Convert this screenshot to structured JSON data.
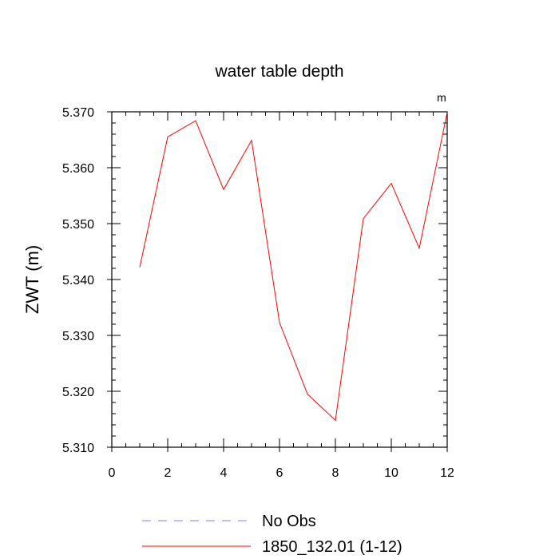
{
  "chart_data": {
    "type": "line",
    "title": "water table depth",
    "units_label": "m",
    "xlabel": "",
    "ylabel": "ZWT  (m)",
    "xlim": [
      0,
      12
    ],
    "ylim": [
      5.31,
      5.37
    ],
    "x_ticks": [
      0,
      2,
      4,
      6,
      8,
      10,
      12
    ],
    "x_tick_labels": [
      "0",
      "2",
      "4",
      "6",
      "8",
      "10",
      "12"
    ],
    "y_ticks": [
      5.31,
      5.32,
      5.33,
      5.34,
      5.35,
      5.36,
      5.37
    ],
    "y_tick_labels": [
      "5.310",
      "5.320",
      "5.330",
      "5.340",
      "5.350",
      "5.360",
      "5.370"
    ],
    "grid": false,
    "legend_position": "bottom",
    "series": [
      {
        "name": "No Obs",
        "color": "#7f7fff",
        "dash": "dashed",
        "x": [],
        "values": []
      },
      {
        "name": "1850_132.01 (1-12)",
        "color": "#ff0000",
        "dash": "solid",
        "x": [
          1,
          2,
          3,
          4,
          5,
          6,
          7,
          8,
          9,
          10,
          11,
          12
        ],
        "values": [
          5.3422,
          5.3655,
          5.3684,
          5.3561,
          5.3649,
          5.3323,
          5.3195,
          5.3148,
          5.3509,
          5.3572,
          5.3456,
          5.3699
        ]
      }
    ]
  }
}
